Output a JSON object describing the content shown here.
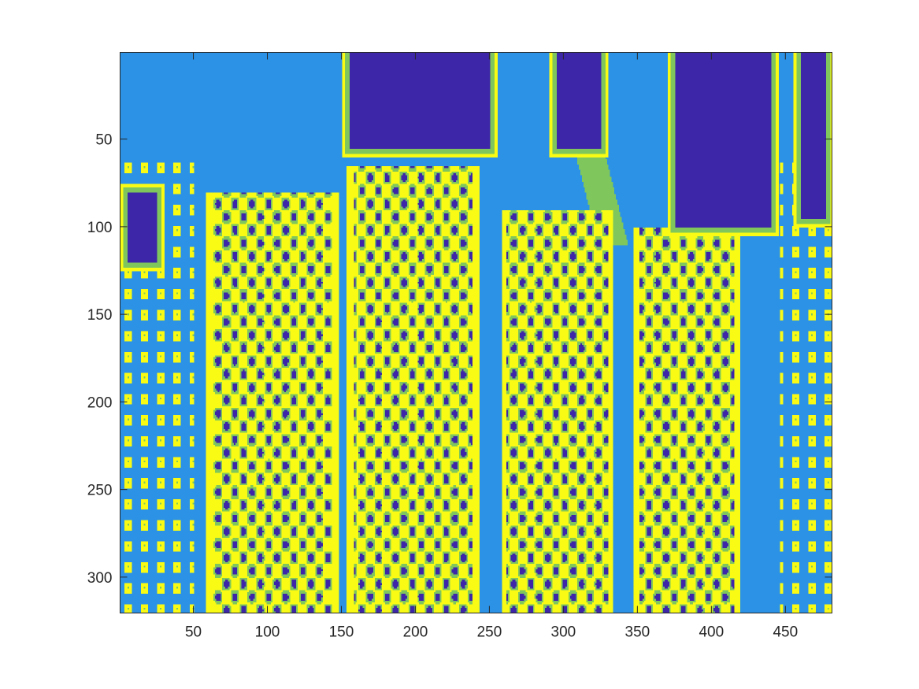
{
  "chart_data": {
    "type": "heatmap",
    "title": "",
    "xlabel": "",
    "ylabel": "",
    "x_ticks": [
      "50",
      "100",
      "150",
      "200",
      "250",
      "300",
      "350",
      "400",
      "450"
    ],
    "y_ticks": [
      "50",
      "100",
      "150",
      "200",
      "250",
      "300"
    ],
    "x_tick_values": [
      50,
      100,
      150,
      200,
      250,
      300,
      350,
      400,
      450
    ],
    "y_tick_values": [
      50,
      100,
      150,
      200,
      250,
      300
    ],
    "xlim": [
      0.5,
      481.5
    ],
    "ylim": [
      0.5,
      320.5
    ],
    "y_direction": "reverse",
    "grid": false,
    "colormap": [
      "#3d26a8",
      "#2b92e6",
      "#7fc75c",
      "#f9fb15"
    ],
    "levels": [
      1,
      2,
      3,
      4
    ],
    "description_of_content": "quantized 4-level image of corn cobs",
    "regions": {
      "background_level": 2,
      "dark_husks": [
        {
          "x": [
            150,
            255
          ],
          "y": [
            0,
            60
          ]
        },
        {
          "x": [
            290,
            330
          ],
          "y": [
            0,
            60
          ]
        },
        {
          "x": [
            370,
            445
          ],
          "y": [
            0,
            105
          ]
        },
        {
          "x": [
            455,
            482
          ],
          "y": [
            0,
            100
          ]
        },
        {
          "x": [
            0,
            30
          ],
          "y": [
            75,
            125
          ]
        }
      ],
      "cobs": [
        {
          "x": [
            55,
            150
          ],
          "y": [
            80,
            320
          ]
        },
        {
          "x": [
            150,
            245
          ],
          "y": [
            65,
            320
          ]
        },
        {
          "x": [
            255,
            335
          ],
          "y": [
            90,
            320
          ]
        },
        {
          "x": [
            345,
            420
          ],
          "y": [
            100,
            320
          ]
        }
      ]
    }
  }
}
